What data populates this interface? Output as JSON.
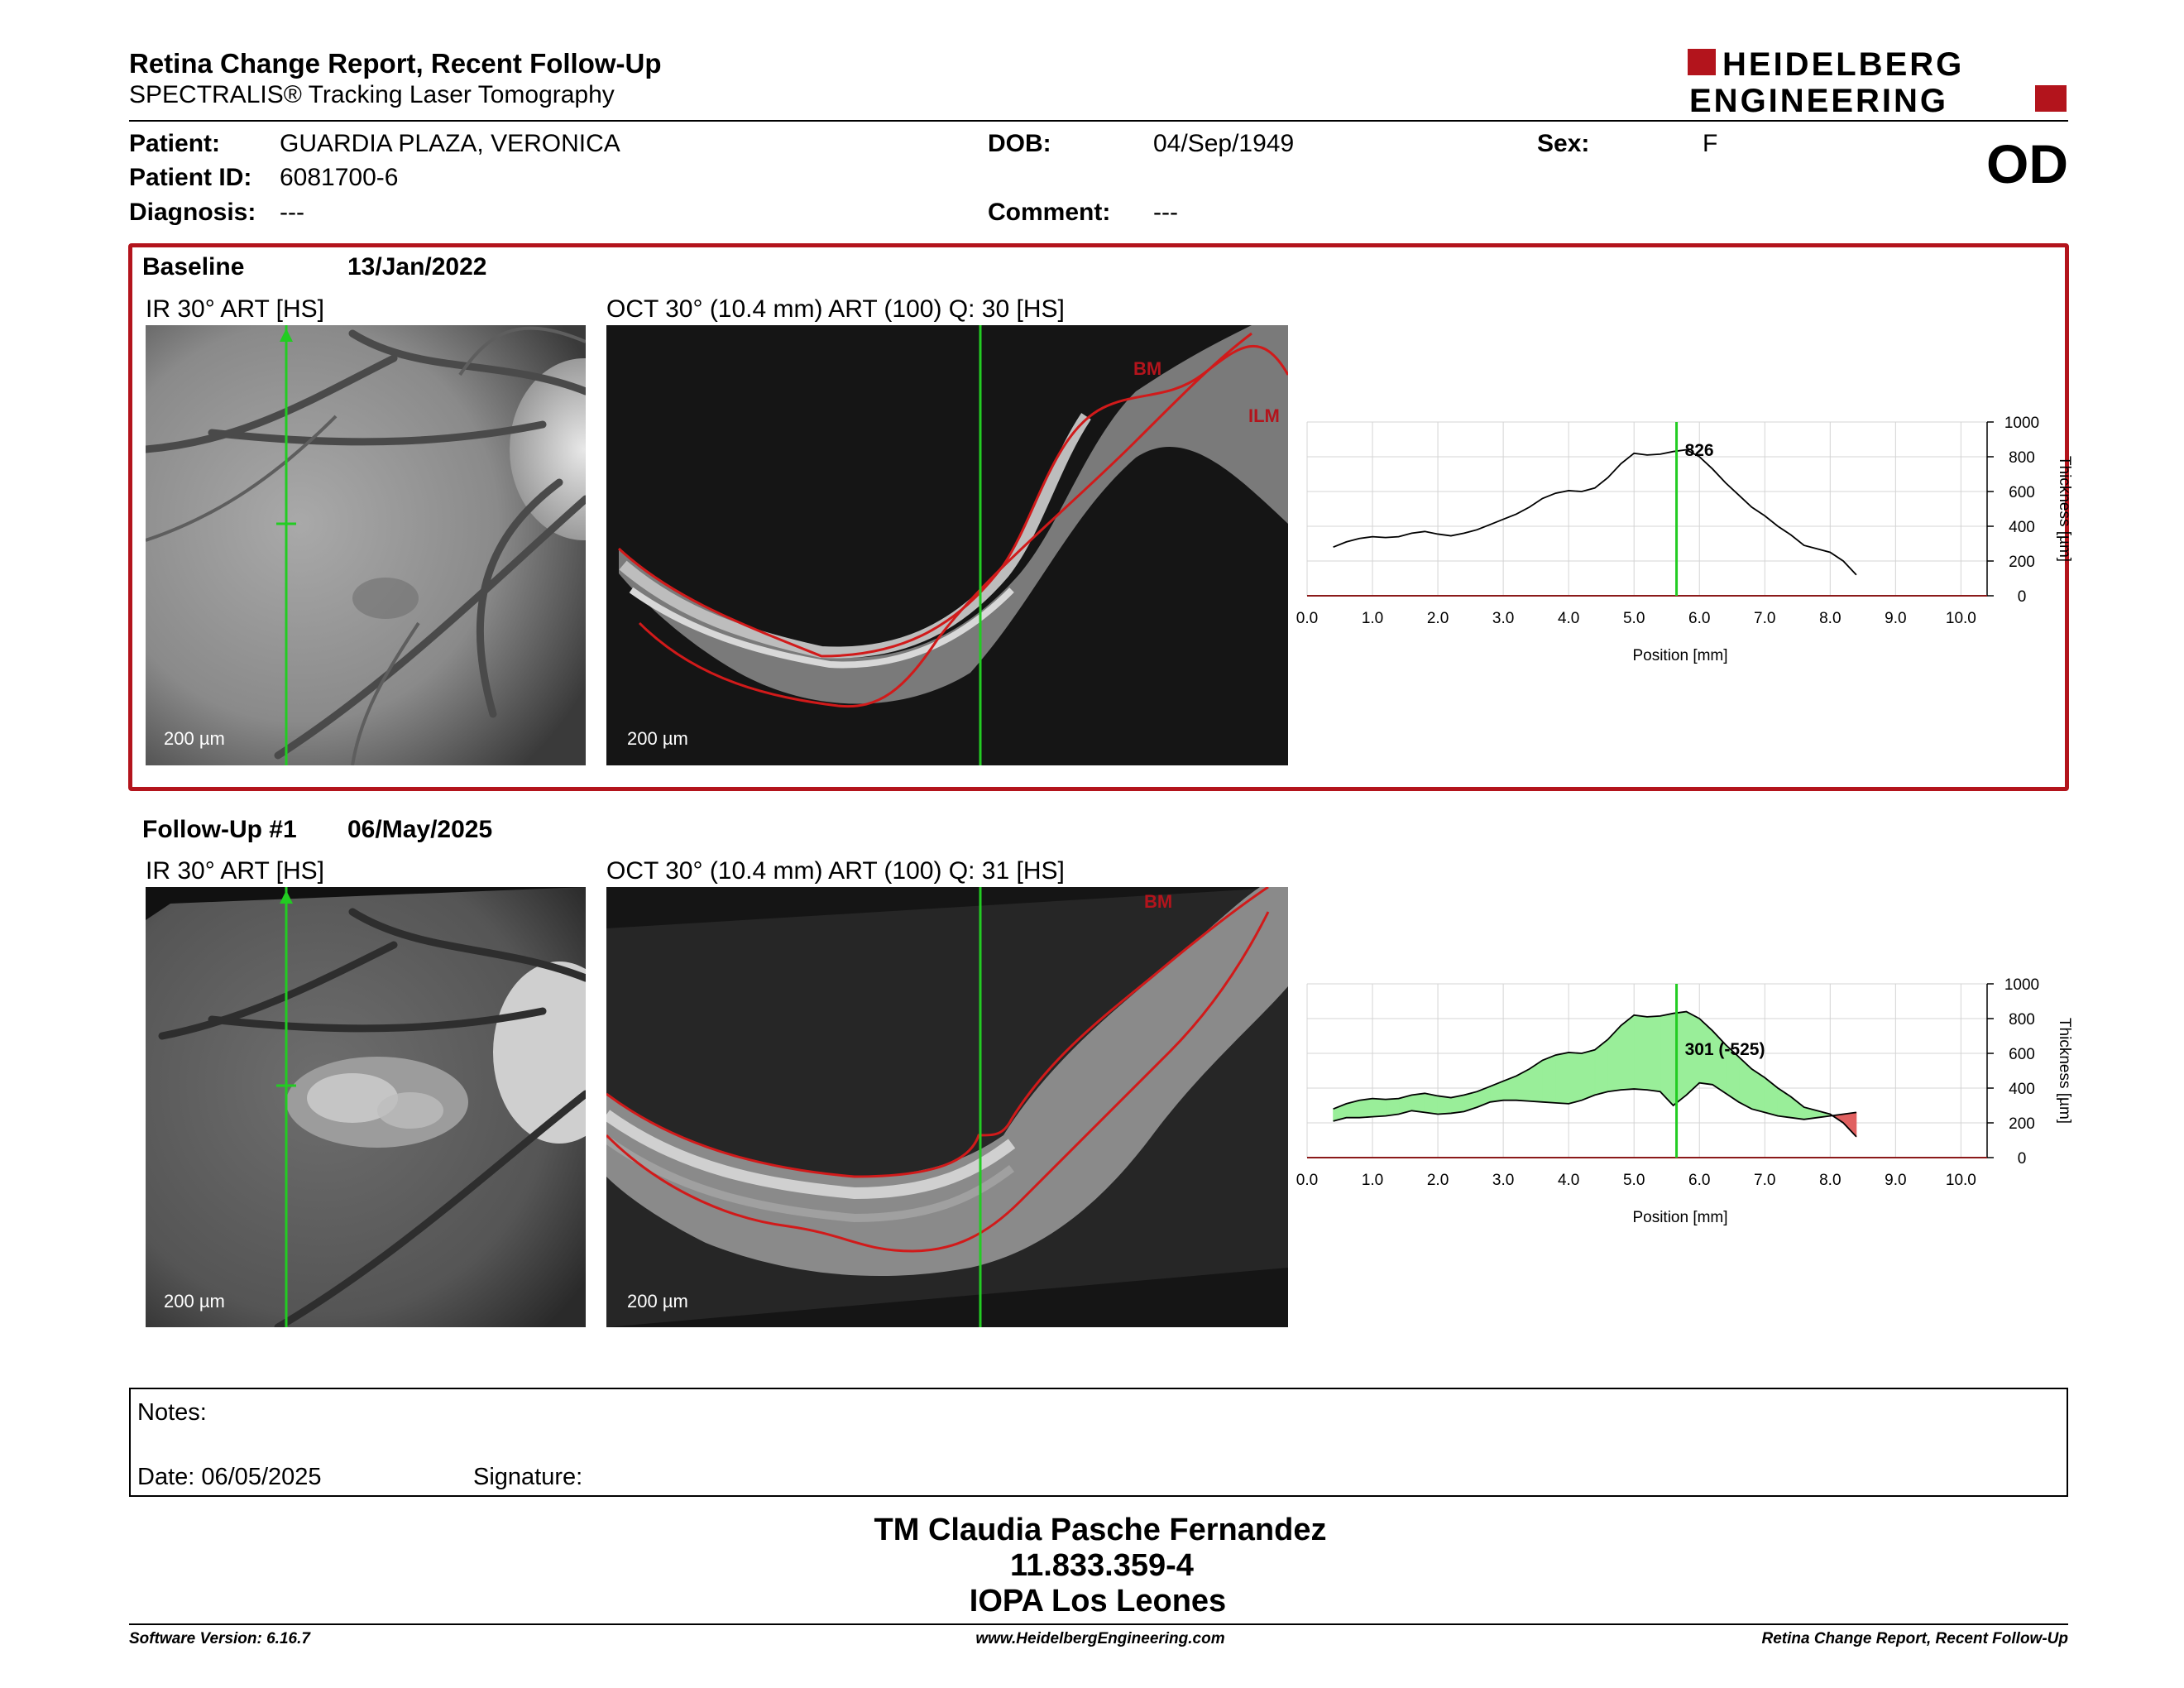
{
  "header": {
    "title": "Retina Change Report, Recent Follow-Up",
    "subtitle": "SPECTRALIS® Tracking Laser Tomography",
    "logo_line1": "HEIDELBERG",
    "logo_line2": "ENGINEERING",
    "eye": "OD"
  },
  "patient": {
    "patient_label": "Patient:",
    "patient_value": "GUARDIA PLAZA, VERONICA",
    "id_label": "Patient ID:",
    "id_value": "6081700-6",
    "diagnosis_label": "Diagnosis:",
    "diagnosis_value": "---",
    "dob_label": "DOB:",
    "dob_value": "04/Sep/1949",
    "comment_label": "Comment:",
    "comment_value": "---",
    "sex_label": "Sex:",
    "sex_value": "F"
  },
  "baseline": {
    "label": "Baseline",
    "date": "13/Jan/2022",
    "ir_title": "IR 30° ART [HS]",
    "oct_title": "OCT 30° (10.4 mm) ART (100) Q: 30 [HS]",
    "ir_scale": "200 µm",
    "oct_scale": "200 µm",
    "bm_label": "BM",
    "ilm_label": "ILM"
  },
  "followup": {
    "label": "Follow-Up #1",
    "date": "06/May/2025",
    "ir_title": "IR 30° ART [HS]",
    "oct_title": "OCT 30° (10.4 mm) ART (100) Q: 31 [HS]",
    "ir_scale": "200 µm",
    "oct_scale": "200 µm",
    "bm_label": "BM"
  },
  "chart_data": [
    {
      "type": "line",
      "xlabel": "Position [mm]",
      "ylabel": "Thickness [µm]",
      "xlim": [
        0,
        10.4
      ],
      "ylim": [
        0,
        1000
      ],
      "x_ticks": [
        "0.0",
        "1.0",
        "2.0",
        "3.0",
        "4.0",
        "5.0",
        "6.0",
        "7.0",
        "8.0",
        "9.0",
        "10.0"
      ],
      "y_ticks": [
        "0",
        "200",
        "400",
        "600",
        "800",
        "1000"
      ],
      "cursor_x": 5.65,
      "cursor_label": "826",
      "series": [
        {
          "x": [
            0.4,
            0.6,
            0.8,
            1.0,
            1.2,
            1.4,
            1.6,
            1.8,
            2.0,
            2.2,
            2.4,
            2.6,
            2.8,
            3.0,
            3.2,
            3.4,
            3.6,
            3.8,
            4.0,
            4.2,
            4.4,
            4.6,
            4.8,
            5.0,
            5.2,
            5.4,
            5.6,
            5.8,
            6.0,
            6.2,
            6.4,
            6.6,
            6.8,
            7.0,
            7.2,
            7.4,
            7.6,
            7.8,
            8.0,
            8.2,
            8.4
          ],
          "y": [
            280,
            310,
            330,
            340,
            335,
            340,
            360,
            370,
            355,
            345,
            360,
            380,
            410,
            440,
            470,
            510,
            560,
            590,
            605,
            600,
            620,
            680,
            760,
            820,
            810,
            815,
            830,
            840,
            800,
            730,
            650,
            580,
            510,
            460,
            400,
            350,
            290,
            270,
            250,
            200,
            120
          ]
        }
      ]
    },
    {
      "type": "area",
      "xlabel": "Position [mm]",
      "ylabel": "Thickness [µm]",
      "xlim": [
        0,
        10.4
      ],
      "ylim": [
        0,
        1000
      ],
      "x_ticks": [
        "0.0",
        "1.0",
        "2.0",
        "3.0",
        "4.0",
        "5.0",
        "6.0",
        "7.0",
        "8.0",
        "9.0",
        "10.0"
      ],
      "y_ticks": [
        "0",
        "200",
        "400",
        "600",
        "800",
        "1000"
      ],
      "cursor_x": 5.65,
      "cursor_label": "301 (-525)",
      "series": [
        {
          "x": [
            0.4,
            0.6,
            0.8,
            1.0,
            1.2,
            1.4,
            1.6,
            1.8,
            2.0,
            2.2,
            2.4,
            2.6,
            2.8,
            3.0,
            3.2,
            3.4,
            3.6,
            3.8,
            4.0,
            4.2,
            4.4,
            4.6,
            4.8,
            5.0,
            5.2,
            5.4,
            5.6,
            5.8,
            6.0,
            6.2,
            6.4,
            6.6,
            6.8,
            7.0,
            7.2,
            7.4,
            7.6,
            7.8,
            8.0,
            8.2,
            8.4
          ],
          "y": [
            280,
            310,
            330,
            340,
            335,
            340,
            360,
            370,
            355,
            345,
            360,
            380,
            410,
            440,
            470,
            510,
            560,
            590,
            605,
            600,
            620,
            680,
            760,
            820,
            810,
            815,
            830,
            840,
            800,
            730,
            650,
            580,
            510,
            460,
            400,
            350,
            290,
            270,
            250,
            200,
            120
          ]
        },
        {
          "x": [
            0.4,
            0.6,
            0.8,
            1.0,
            1.2,
            1.4,
            1.6,
            1.8,
            2.0,
            2.2,
            2.4,
            2.6,
            2.8,
            3.0,
            3.2,
            3.4,
            3.6,
            3.8,
            4.0,
            4.2,
            4.4,
            4.6,
            4.8,
            5.0,
            5.2,
            5.4,
            5.6,
            5.8,
            6.0,
            6.2,
            6.4,
            6.6,
            6.8,
            7.0,
            7.2,
            7.4,
            7.6,
            7.8,
            8.0,
            8.2,
            8.4
          ],
          "y": [
            210,
            230,
            230,
            235,
            240,
            250,
            270,
            260,
            250,
            255,
            265,
            290,
            320,
            330,
            330,
            325,
            320,
            315,
            310,
            330,
            360,
            380,
            390,
            395,
            390,
            380,
            300,
            360,
            430,
            420,
            370,
            320,
            280,
            260,
            240,
            230,
            220,
            230,
            240,
            250,
            260
          ]
        }
      ]
    }
  ],
  "notes": {
    "notes_label": "Notes:",
    "date_label": "Date: 06/05/2025",
    "signature_label": "Signature:"
  },
  "signature_block": {
    "name": "TM Claudia Pasche Fernandez",
    "number": "11.833.359-4",
    "place": "IOPA Los Leones"
  },
  "footer": {
    "software": "Software Version: 6.16.7",
    "website": "www.HeidelbergEngineering.com",
    "report": "Retina Change Report, Recent Follow-Up"
  },
  "colors": {
    "accent_red": "#b3141c",
    "cursor_green": "#22cc22",
    "fill_green": "#99ee99",
    "fill_red": "#e06060"
  }
}
